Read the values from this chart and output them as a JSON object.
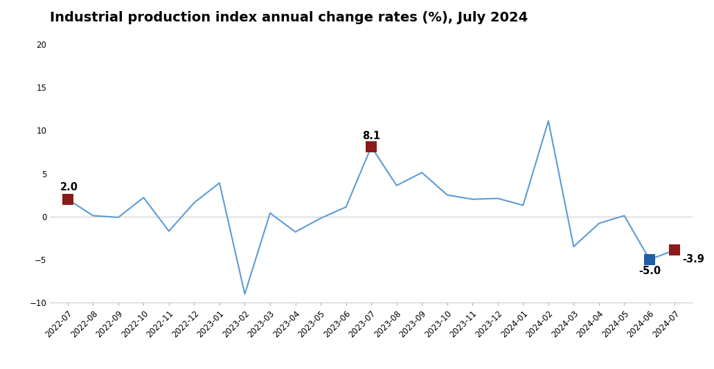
{
  "title": "Industrial production index annual change rates (%), July 2024",
  "categories": [
    "2022-07",
    "2022-08",
    "2022-09",
    "2022-10",
    "2022-11",
    "2022-12",
    "2023-01",
    "2023-02",
    "2023-03",
    "2023-04",
    "2023-05",
    "2023-06",
    "2023-07",
    "2023-08",
    "2023-09",
    "2023-10",
    "2023-11",
    "2023-12",
    "2024-01",
    "2024-02",
    "2024-03",
    "2024-04",
    "2024-05",
    "2024-06",
    "2024-07"
  ],
  "values": [
    2.0,
    0.1,
    -0.1,
    2.2,
    -1.7,
    1.6,
    3.9,
    -9.0,
    0.4,
    -1.8,
    -0.2,
    1.1,
    8.1,
    3.6,
    5.1,
    2.5,
    2.0,
    2.1,
    1.3,
    11.1,
    -3.5,
    -0.8,
    0.1,
    -5.0,
    -3.9
  ],
  "highlighted_indices": [
    0,
    12,
    23,
    24
  ],
  "highlight_colors": [
    "#8B1A1A",
    "#8B1A1A",
    "#1F5EA8",
    "#8B1A1A"
  ],
  "line_color": "#5B9BD5",
  "line_width": 1.5,
  "ylim": [
    -10,
    20
  ],
  "yticks": [
    -10,
    -5,
    0,
    5,
    10,
    15,
    20
  ],
  "background_color": "#FFFFFF",
  "zero_line_color": "#CCCCCC",
  "title_fontsize": 14,
  "tick_fontsize": 8.5,
  "label_fontsize": 10.5
}
